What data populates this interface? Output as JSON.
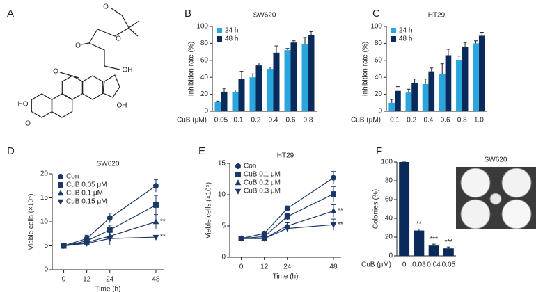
{
  "structure": {
    "label": "A",
    "atoms": [
      "O",
      "O",
      "O",
      "OH",
      "O",
      "HO",
      "O",
      "OH"
    ]
  },
  "chart_data": [
    {
      "type": "bar",
      "label": "B",
      "title": "SW620",
      "xlabel": "CuB (μM)",
      "ylabel": "Inhibition rate (%)",
      "categories": [
        "0.05",
        "0.1",
        "0.2",
        "0.4",
        "0.6",
        "0.8"
      ],
      "series": [
        {
          "name": "24 h",
          "color": "#2aa6df",
          "values": [
            11,
            23,
            40,
            50,
            72,
            79
          ],
          "errors": [
            1,
            2,
            4,
            2,
            2,
            8
          ]
        },
        {
          "name": "48 h",
          "color": "#0b2a5c",
          "values": [
            23,
            38,
            54,
            69,
            81,
            90
          ],
          "errors": [
            4,
            9,
            3,
            8,
            2,
            4
          ]
        }
      ],
      "ylim": [
        0,
        100
      ],
      "yticks": [
        0,
        20,
        40,
        60,
        80,
        100
      ]
    },
    {
      "type": "bar",
      "label": "C",
      "title": "HT29",
      "xlabel": "CuB (μM)",
      "ylabel": "Inhibition rate (%)",
      "categories": [
        "0.1",
        "0.2",
        "0.4",
        "0.6",
        "0.8",
        "1.0"
      ],
      "series": [
        {
          "name": "24 h",
          "color": "#2aa6df",
          "values": [
            10,
            22,
            32,
            44,
            60,
            80
          ],
          "errors": [
            4,
            4,
            6,
            12,
            5,
            3
          ]
        },
        {
          "name": "48 h",
          "color": "#0b2a5c",
          "values": [
            24,
            33,
            47,
            66,
            76,
            89
          ],
          "errors": [
            5,
            5,
            4,
            7,
            5,
            4
          ]
        }
      ],
      "ylim": [
        0,
        100
      ],
      "yticks": [
        0,
        20,
        40,
        60,
        80,
        100
      ]
    },
    {
      "type": "line",
      "label": "D",
      "title": "SW620",
      "xlabel": "Time (h)",
      "ylabel": "Viable cells (×10⁵)",
      "x": [
        0,
        12,
        24,
        48
      ],
      "xlim": [
        -6,
        52
      ],
      "xticks": [
        0,
        12,
        24,
        48
      ],
      "ylim": [
        0,
        20
      ],
      "yticks": [
        0,
        5,
        10,
        15,
        20
      ],
      "series": [
        {
          "name": "Con",
          "color": "#1a3766",
          "marker": "circle",
          "values": [
            5,
            6.5,
            10.8,
            17.5
          ],
          "errors": [
            0.3,
            0.7,
            1,
            1.3
          ]
        },
        {
          "name": "CuB 0.05 μM",
          "color": "#1a3766",
          "marker": "square",
          "values": [
            5,
            6,
            8.3,
            13.5
          ],
          "errors": [
            0.3,
            0.5,
            1,
            2
          ]
        },
        {
          "name": "CuB 0.1 μM",
          "color": "#1a3766",
          "marker": "triangle-up",
          "values": [
            5,
            5.7,
            7,
            10
          ],
          "errors": [
            0.3,
            0.5,
            1,
            1.5
          ],
          "annotation": "**"
        },
        {
          "name": "CuB 0.15 μM",
          "color": "#1a3766",
          "marker": "triangle-down",
          "values": [
            5,
            5.5,
            6.5,
            6.8
          ],
          "errors": [
            0.3,
            0.4,
            1.3,
            0.3
          ],
          "annotation": "**"
        }
      ]
    },
    {
      "type": "line",
      "label": "E",
      "title": "HT29",
      "xlabel": "Time (h)",
      "ylabel": "Viable cells (×10⁵)",
      "x": [
        0,
        12,
        24,
        48
      ],
      "xlim": [
        -6,
        52
      ],
      "xticks": [
        0,
        12,
        24,
        48
      ],
      "ylim": [
        0,
        15
      ],
      "yticks": [
        0,
        5,
        10,
        15
      ],
      "series": [
        {
          "name": "Con",
          "color": "#1a3766",
          "marker": "circle",
          "values": [
            3,
            3.8,
            7.8,
            12.7
          ],
          "errors": [
            0.2,
            0.3,
            0.4,
            1
          ]
        },
        {
          "name": "CuB 0.1 μM",
          "color": "#1a3766",
          "marker": "square",
          "values": [
            3,
            3.3,
            6.5,
            10.1
          ],
          "errors": [
            0.2,
            0.3,
            0.5,
            1.2
          ]
        },
        {
          "name": "CuB 0.2 μM",
          "color": "#1a3766",
          "marker": "triangle-up",
          "values": [
            3,
            3,
            5,
            7.4
          ],
          "errors": [
            0.2,
            0.2,
            0.5,
            1
          ],
          "annotation": "**"
        },
        {
          "name": "CuB 0.3 μM",
          "color": "#1a3766",
          "marker": "triangle-down",
          "values": [
            3,
            3,
            4.6,
            5.2
          ],
          "errors": [
            0.2,
            0.2,
            0.5,
            0.9
          ],
          "annotation": "**"
        }
      ]
    },
    {
      "type": "bar",
      "label": "F",
      "title": "SW620",
      "xlabel": "CuB (μM)",
      "ylabel": "Colonies (%)",
      "categories": [
        "0",
        "0.03",
        "0.04",
        "0.05"
      ],
      "values": [
        100,
        27,
        11,
        8
      ],
      "errors": [
        0,
        1.5,
        1.5,
        1.5
      ],
      "color": "#0b2a5c",
      "annotations": [
        null,
        "**",
        "***",
        "***"
      ],
      "ylim": [
        0,
        100
      ],
      "yticks": [
        0,
        20,
        40,
        60,
        80,
        100
      ]
    }
  ]
}
